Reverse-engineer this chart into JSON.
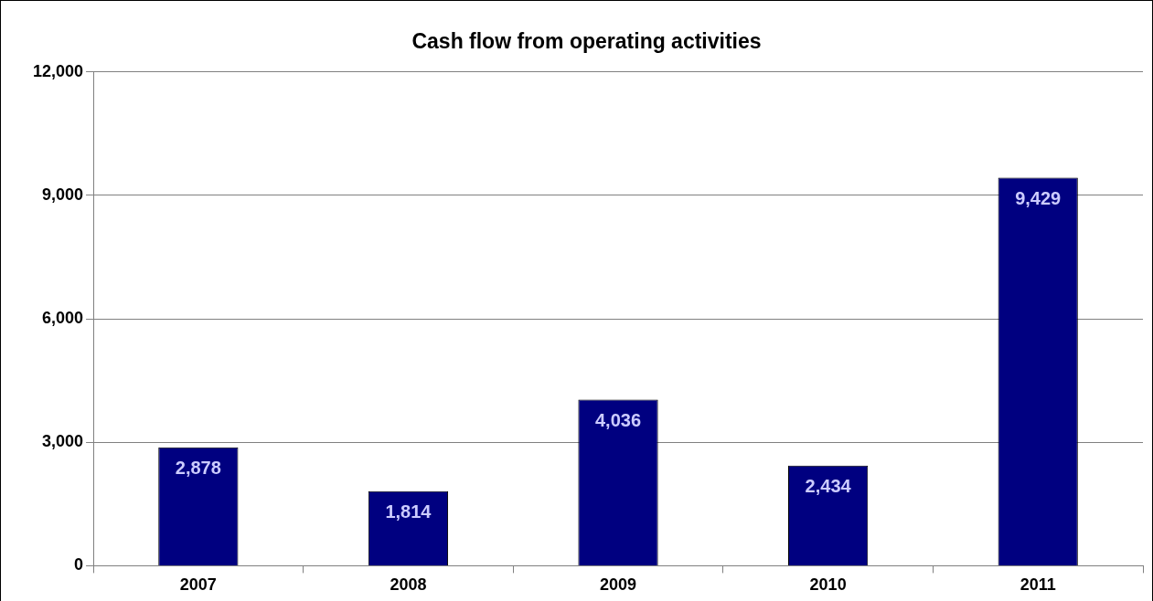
{
  "chart_data": {
    "type": "bar",
    "title": "Cash flow from operating activities",
    "categories": [
      "2007",
      "2008",
      "2009",
      "2010",
      "2011"
    ],
    "values": [
      2878,
      1814,
      4036,
      2434,
      9429
    ],
    "value_labels": [
      "2,878",
      "1,814",
      "4,036",
      "2,434",
      "9,429"
    ],
    "color": "#000080",
    "ylim": [
      0,
      12000
    ],
    "yticks": [
      0,
      {
        "value": 3000,
        "label": "3,000"
      },
      {
        "value": 6000,
        "label": "6,000"
      },
      {
        "value": 9000,
        "label": "9,000"
      },
      {
        "value": 12000,
        "label": "12,000"
      }
    ],
    "grid": "y"
  }
}
